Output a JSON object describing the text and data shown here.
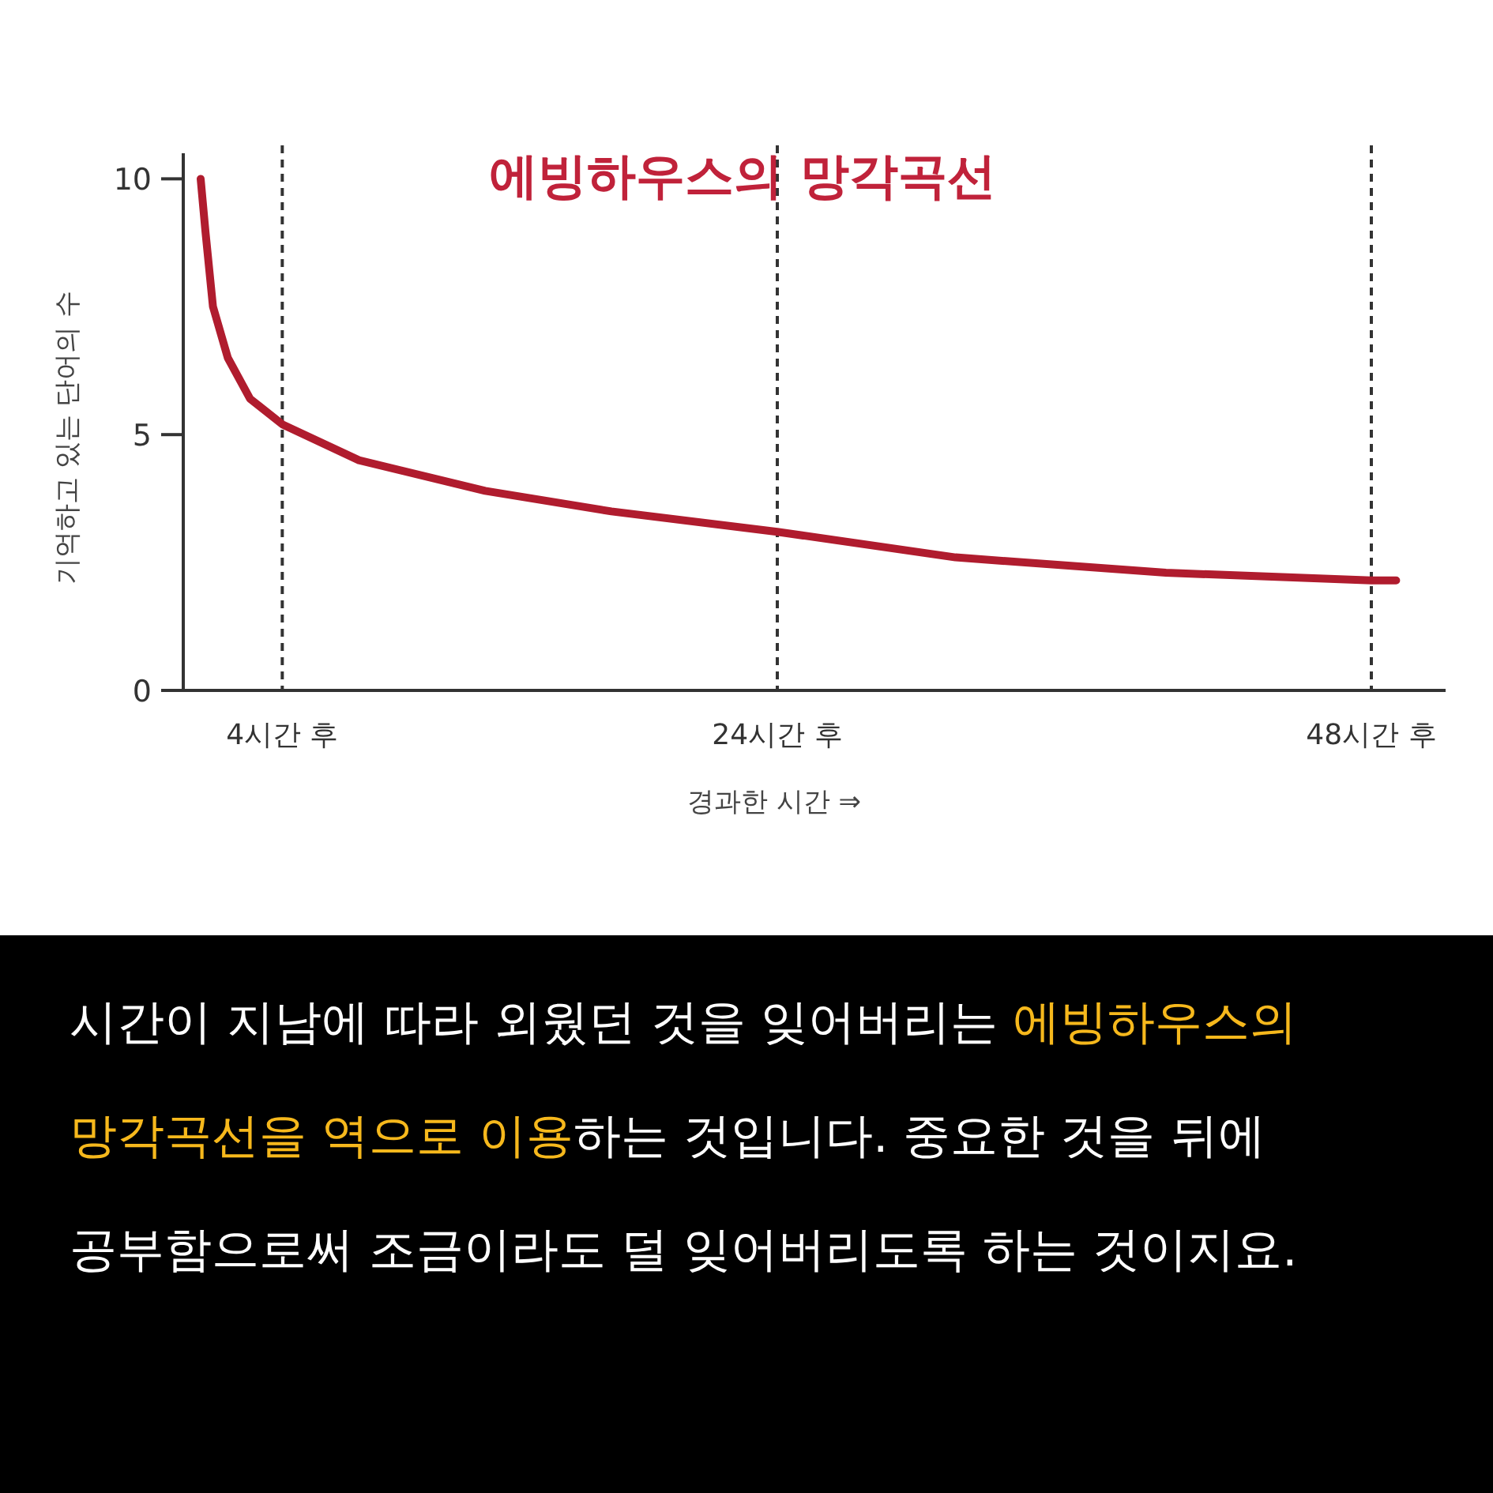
{
  "chart_data": {
    "type": "line",
    "title": "에빙하우스의 망각곡선",
    "xlabel": "경과한 시간 ⇒",
    "ylabel": "기억하고 있는 단어의 수",
    "x": [
      0.7,
      0.9,
      1.2,
      1.8,
      2.7,
      4,
      7.1,
      12.2,
      17.3,
      24,
      31.2,
      39.7,
      48,
      49
    ],
    "values": [
      10,
      8.95,
      7.5,
      6.5,
      5.7,
      5.2,
      4.5,
      3.9,
      3.5,
      3.1,
      2.6,
      2.3,
      2.15,
      2.15
    ],
    "color": "#b01c2e",
    "xlim": [
      0,
      51
    ],
    "ylim": [
      0,
      10.5
    ],
    "xticks": [
      {
        "value": 4,
        "label": "4시간 후"
      },
      {
        "value": 24,
        "label": "24시간 후"
      },
      {
        "value": 48,
        "label": "48시간 후"
      }
    ],
    "yticks": [
      0,
      5,
      10
    ],
    "ref_lines": [
      {
        "axis": "x",
        "value": 4,
        "line_style": "dashed",
        "color": "#333333"
      },
      {
        "axis": "x",
        "value": 24,
        "line_style": "dashed",
        "color": "#333333"
      },
      {
        "axis": "x",
        "value": 48,
        "line_style": "dashed",
        "color": "#333333"
      }
    ],
    "annotations": [
      "시간이 지남에 따라 외웠던 것을 잊어버리는 ",
      "에빙하우스의 망각곡선을 역으로 이용",
      "하는 것입니다. 중요한 것을 뒤에 공부함으로써 조금이라도 덜 잊어버리도록 하는 것이지요."
    ]
  }
}
